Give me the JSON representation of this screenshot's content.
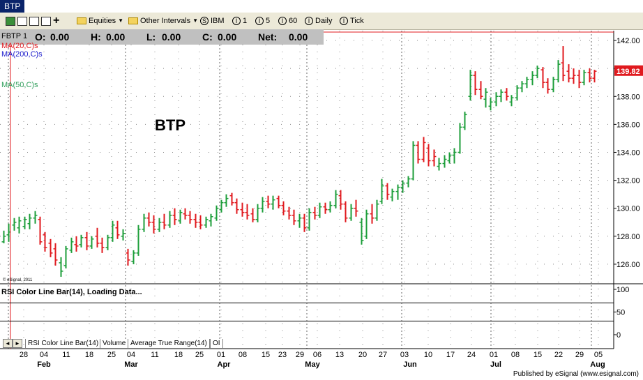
{
  "window": {
    "title": "BTP"
  },
  "toolbar": {
    "equities_label": "Equities",
    "intervals_label": "Other Intervals",
    "symbol": "IBM",
    "intervals": [
      "1",
      "5",
      "60",
      "Daily",
      "Tick"
    ]
  },
  "ohlc": {
    "symbol_label": "FBTP 1",
    "o_label": "O:",
    "o": "0.00",
    "h_label": "H:",
    "h": "0.00",
    "l_label": "L:",
    "l": "0.00",
    "c_label": "C:",
    "c": "0.00",
    "net_label": "Net:",
    "net": "0.00"
  },
  "studies": {
    "ma20": "MA(20,C)s",
    "ma200": "MA(200,C)s",
    "ma50": "MA(50,C)s",
    "copyright": "© eSignal, 2011",
    "rsi_label": "RSI Color Line Bar(14), Loading Data..."
  },
  "tabs": [
    "RSI Color Line Bar(14)",
    "Volume",
    "Average True Range(14)",
    "OI"
  ],
  "footer": "Published by eSignal (www.esignal.com)",
  "colors": {
    "up": "#1c9e3a",
    "down": "#e0191e",
    "ma20": "#e0191e",
    "ma200": "#1a1acc",
    "ma50": "#2e9e5a",
    "price_tag": "#e0191e"
  },
  "chart_data": {
    "type": "ohlc",
    "title": "BTP",
    "y_ticks": [
      126,
      128,
      130,
      132,
      134,
      136,
      138,
      140,
      142
    ],
    "ylim": [
      124.6,
      142.7
    ],
    "last_price": "139.82",
    "x_day_labels": [
      "28",
      "04",
      "11",
      "18",
      "25",
      "04",
      "11",
      "18",
      "25",
      "01",
      "08",
      "15",
      "23",
      "29",
      "06",
      "13",
      "20",
      "27",
      "03",
      "10",
      "17",
      "24",
      "01",
      "08",
      "15",
      "22",
      "29",
      "05"
    ],
    "x_month_labels": [
      "Feb",
      "Mar",
      "Apr",
      "May",
      "Jun",
      "Jul",
      "Aug"
    ],
    "rsi": {
      "ylim": [
        0,
        100
      ],
      "ticks": [
        0,
        50,
        100
      ],
      "levels": [
        30,
        70
      ]
    },
    "bars": [
      {
        "o": 127.6,
        "h": 128.4,
        "l": 127.5,
        "c": 128.0,
        "dir": "up"
      },
      {
        "o": 128.1,
        "h": 128.9,
        "l": 127.6,
        "c": 128.3,
        "dir": "up"
      },
      {
        "o": 128.8,
        "h": 129.3,
        "l": 128.4,
        "c": 129.0,
        "dir": "up"
      },
      {
        "o": 128.6,
        "h": 129.4,
        "l": 128.2,
        "c": 129.1,
        "dir": "up"
      },
      {
        "o": 128.7,
        "h": 129.4,
        "l": 128.5,
        "c": 129.2,
        "dir": "up"
      },
      {
        "o": 128.9,
        "h": 129.6,
        "l": 128.5,
        "c": 129.3,
        "dir": "up"
      },
      {
        "o": 129.3,
        "h": 129.8,
        "l": 128.9,
        "c": 129.5,
        "dir": "up"
      },
      {
        "o": 129.2,
        "h": 129.4,
        "l": 127.4,
        "c": 127.6,
        "dir": "down"
      },
      {
        "o": 128.1,
        "h": 128.3,
        "l": 126.9,
        "c": 127.2,
        "dir": "down"
      },
      {
        "o": 127.5,
        "h": 127.8,
        "l": 126.5,
        "c": 126.8,
        "dir": "down"
      },
      {
        "o": 127.1,
        "h": 127.5,
        "l": 125.9,
        "c": 126.3,
        "dir": "down"
      },
      {
        "o": 126.1,
        "h": 126.5,
        "l": 125.1,
        "c": 125.5,
        "dir": "up"
      },
      {
        "o": 125.9,
        "h": 127.3,
        "l": 125.7,
        "c": 127.1,
        "dir": "up"
      },
      {
        "o": 127.0,
        "h": 127.9,
        "l": 126.8,
        "c": 127.6,
        "dir": "up"
      },
      {
        "o": 127.4,
        "h": 128.0,
        "l": 126.9,
        "c": 127.3,
        "dir": "down"
      },
      {
        "o": 127.4,
        "h": 128.1,
        "l": 127.2,
        "c": 127.9,
        "dir": "up"
      },
      {
        "o": 127.9,
        "h": 128.3,
        "l": 127.0,
        "c": 127.3,
        "dir": "down"
      },
      {
        "o": 127.3,
        "h": 128.0,
        "l": 127.1,
        "c": 127.8,
        "dir": "up"
      },
      {
        "o": 128.0,
        "h": 128.6,
        "l": 127.2,
        "c": 127.5,
        "dir": "down"
      },
      {
        "o": 127.5,
        "h": 127.9,
        "l": 126.8,
        "c": 127.2,
        "dir": "down"
      },
      {
        "o": 127.2,
        "h": 128.1,
        "l": 127.0,
        "c": 127.9,
        "dir": "up"
      },
      {
        "o": 127.9,
        "h": 129.1,
        "l": 127.6,
        "c": 128.8,
        "dir": "up"
      },
      {
        "o": 128.6,
        "h": 129.1,
        "l": 127.8,
        "c": 128.1,
        "dir": "down"
      },
      {
        "o": 128.0,
        "h": 128.5,
        "l": 127.7,
        "c": 128.2,
        "dir": "up"
      },
      {
        "o": 126.8,
        "h": 127.1,
        "l": 125.9,
        "c": 126.3,
        "dir": "down"
      },
      {
        "o": 126.2,
        "h": 127.0,
        "l": 126.0,
        "c": 126.8,
        "dir": "up"
      },
      {
        "o": 126.8,
        "h": 128.8,
        "l": 126.6,
        "c": 128.5,
        "dir": "up"
      },
      {
        "o": 128.5,
        "h": 129.6,
        "l": 128.3,
        "c": 129.3,
        "dir": "up"
      },
      {
        "o": 129.3,
        "h": 129.7,
        "l": 128.7,
        "c": 129.0,
        "dir": "down"
      },
      {
        "o": 129.0,
        "h": 129.5,
        "l": 128.2,
        "c": 128.5,
        "dir": "down"
      },
      {
        "o": 128.5,
        "h": 129.3,
        "l": 128.3,
        "c": 129.0,
        "dir": "up"
      },
      {
        "o": 129.0,
        "h": 129.6,
        "l": 128.5,
        "c": 128.8,
        "dir": "down"
      },
      {
        "o": 128.8,
        "h": 129.8,
        "l": 128.6,
        "c": 129.5,
        "dir": "up"
      },
      {
        "o": 129.5,
        "h": 130.0,
        "l": 128.8,
        "c": 129.2,
        "dir": "down"
      },
      {
        "o": 129.1,
        "h": 129.9,
        "l": 128.9,
        "c": 129.7,
        "dir": "up"
      },
      {
        "o": 129.6,
        "h": 130.0,
        "l": 129.2,
        "c": 129.5,
        "dir": "down"
      },
      {
        "o": 129.5,
        "h": 129.8,
        "l": 128.9,
        "c": 129.2,
        "dir": "down"
      },
      {
        "o": 129.2,
        "h": 129.6,
        "l": 128.6,
        "c": 129.0,
        "dir": "down"
      },
      {
        "o": 129.0,
        "h": 129.5,
        "l": 128.5,
        "c": 128.8,
        "dir": "down"
      },
      {
        "o": 128.8,
        "h": 129.4,
        "l": 128.6,
        "c": 129.2,
        "dir": "up"
      },
      {
        "o": 129.1,
        "h": 129.6,
        "l": 128.7,
        "c": 129.4,
        "dir": "up"
      },
      {
        "o": 129.3,
        "h": 130.2,
        "l": 129.1,
        "c": 130.0,
        "dir": "up"
      },
      {
        "o": 129.9,
        "h": 130.6,
        "l": 129.7,
        "c": 130.4,
        "dir": "up"
      },
      {
        "o": 130.4,
        "h": 131.0,
        "l": 130.1,
        "c": 130.7,
        "dir": "up"
      },
      {
        "o": 130.9,
        "h": 131.1,
        "l": 130.2,
        "c": 130.4,
        "dir": "down"
      },
      {
        "o": 130.4,
        "h": 130.7,
        "l": 129.6,
        "c": 129.9,
        "dir": "down"
      },
      {
        "o": 129.9,
        "h": 130.4,
        "l": 129.4,
        "c": 129.7,
        "dir": "down"
      },
      {
        "o": 129.7,
        "h": 130.3,
        "l": 129.2,
        "c": 129.5,
        "dir": "down"
      },
      {
        "o": 129.6,
        "h": 130.0,
        "l": 129.0,
        "c": 129.2,
        "dir": "down"
      },
      {
        "o": 129.2,
        "h": 130.3,
        "l": 129.0,
        "c": 130.0,
        "dir": "up"
      },
      {
        "o": 130.0,
        "h": 130.8,
        "l": 129.7,
        "c": 130.5,
        "dir": "up"
      },
      {
        "o": 130.5,
        "h": 130.9,
        "l": 130.0,
        "c": 130.3,
        "dir": "down"
      },
      {
        "o": 130.3,
        "h": 130.9,
        "l": 129.9,
        "c": 130.6,
        "dir": "up"
      },
      {
        "o": 130.7,
        "h": 130.9,
        "l": 130.0,
        "c": 130.2,
        "dir": "down"
      },
      {
        "o": 130.2,
        "h": 130.5,
        "l": 129.5,
        "c": 129.8,
        "dir": "down"
      },
      {
        "o": 129.8,
        "h": 130.1,
        "l": 129.2,
        "c": 129.5,
        "dir": "down"
      },
      {
        "o": 129.5,
        "h": 129.9,
        "l": 128.8,
        "c": 129.1,
        "dir": "down"
      },
      {
        "o": 129.1,
        "h": 129.6,
        "l": 128.6,
        "c": 129.3,
        "dir": "up"
      },
      {
        "o": 129.3,
        "h": 129.6,
        "l": 128.3,
        "c": 128.6,
        "dir": "down"
      },
      {
        "o": 128.6,
        "h": 130.0,
        "l": 128.4,
        "c": 129.7,
        "dir": "up"
      },
      {
        "o": 129.7,
        "h": 130.1,
        "l": 129.2,
        "c": 129.5,
        "dir": "down"
      },
      {
        "o": 129.5,
        "h": 130.4,
        "l": 129.3,
        "c": 130.1,
        "dir": "up"
      },
      {
        "o": 130.1,
        "h": 130.4,
        "l": 129.6,
        "c": 129.9,
        "dir": "down"
      },
      {
        "o": 129.9,
        "h": 130.5,
        "l": 129.7,
        "c": 130.2,
        "dir": "up"
      },
      {
        "o": 130.2,
        "h": 131.3,
        "l": 130.0,
        "c": 131.0,
        "dir": "up"
      },
      {
        "o": 130.9,
        "h": 131.3,
        "l": 129.9,
        "c": 130.3,
        "dir": "down"
      },
      {
        "o": 130.3,
        "h": 130.5,
        "l": 129.0,
        "c": 129.3,
        "dir": "down"
      },
      {
        "o": 129.3,
        "h": 130.3,
        "l": 129.1,
        "c": 130.0,
        "dir": "up"
      },
      {
        "o": 130.0,
        "h": 130.6,
        "l": 129.4,
        "c": 129.8,
        "dir": "down"
      },
      {
        "o": 129.0,
        "h": 129.3,
        "l": 127.4,
        "c": 127.7,
        "dir": "up"
      },
      {
        "o": 128.0,
        "h": 129.9,
        "l": 127.8,
        "c": 129.6,
        "dir": "up"
      },
      {
        "o": 129.6,
        "h": 130.3,
        "l": 128.9,
        "c": 129.3,
        "dir": "down"
      },
      {
        "o": 129.3,
        "h": 130.6,
        "l": 129.1,
        "c": 130.3,
        "dir": "up"
      },
      {
        "o": 130.5,
        "h": 132.1,
        "l": 130.3,
        "c": 131.6,
        "dir": "up"
      },
      {
        "o": 131.6,
        "h": 131.8,
        "l": 130.6,
        "c": 131.0,
        "dir": "down"
      },
      {
        "o": 130.8,
        "h": 131.4,
        "l": 130.5,
        "c": 131.2,
        "dir": "up"
      },
      {
        "o": 131.2,
        "h": 131.7,
        "l": 130.6,
        "c": 131.5,
        "dir": "up"
      },
      {
        "o": 131.5,
        "h": 132.0,
        "l": 131.1,
        "c": 131.8,
        "dir": "up"
      },
      {
        "o": 131.8,
        "h": 132.3,
        "l": 131.5,
        "c": 132.1,
        "dir": "up"
      },
      {
        "o": 132.1,
        "h": 134.8,
        "l": 132.0,
        "c": 134.5,
        "dir": "up"
      },
      {
        "o": 134.5,
        "h": 134.8,
        "l": 133.2,
        "c": 133.5,
        "dir": "down"
      },
      {
        "o": 133.5,
        "h": 135.1,
        "l": 133.3,
        "c": 134.7,
        "dir": "down"
      },
      {
        "o": 134.3,
        "h": 134.6,
        "l": 133.0,
        "c": 133.4,
        "dir": "down"
      },
      {
        "o": 133.4,
        "h": 134.2,
        "l": 133.0,
        "c": 133.7,
        "dir": "down"
      },
      {
        "o": 133.0,
        "h": 133.6,
        "l": 132.7,
        "c": 133.2,
        "dir": "up"
      },
      {
        "o": 133.2,
        "h": 133.8,
        "l": 132.9,
        "c": 133.5,
        "dir": "up"
      },
      {
        "o": 133.4,
        "h": 134.0,
        "l": 133.2,
        "c": 133.8,
        "dir": "up"
      },
      {
        "o": 133.8,
        "h": 134.3,
        "l": 133.2,
        "c": 134.0,
        "dir": "up"
      },
      {
        "o": 134.0,
        "h": 136.1,
        "l": 133.9,
        "c": 135.8,
        "dir": "up"
      },
      {
        "o": 135.8,
        "h": 136.9,
        "l": 135.6,
        "c": 136.7,
        "dir": "up"
      },
      {
        "o": 138.0,
        "h": 139.9,
        "l": 137.7,
        "c": 139.5,
        "dir": "up"
      },
      {
        "o": 139.5,
        "h": 139.8,
        "l": 138.1,
        "c": 138.5,
        "dir": "down"
      },
      {
        "o": 138.5,
        "h": 139.1,
        "l": 137.8,
        "c": 138.0,
        "dir": "down"
      },
      {
        "o": 137.8,
        "h": 138.6,
        "l": 137.2,
        "c": 138.3,
        "dir": "up"
      },
      {
        "o": 137.3,
        "h": 137.9,
        "l": 137.0,
        "c": 137.6,
        "dir": "up"
      },
      {
        "o": 137.6,
        "h": 138.3,
        "l": 137.3,
        "c": 138.0,
        "dir": "up"
      },
      {
        "o": 138.0,
        "h": 138.5,
        "l": 137.6,
        "c": 138.3,
        "dir": "up"
      },
      {
        "o": 138.3,
        "h": 138.6,
        "l": 137.7,
        "c": 138.0,
        "dir": "down"
      },
      {
        "o": 137.6,
        "h": 138.1,
        "l": 137.3,
        "c": 137.9,
        "dir": "up"
      },
      {
        "o": 137.9,
        "h": 138.8,
        "l": 137.7,
        "c": 138.6,
        "dir": "up"
      },
      {
        "o": 138.6,
        "h": 139.1,
        "l": 138.3,
        "c": 138.9,
        "dir": "up"
      },
      {
        "o": 138.9,
        "h": 139.4,
        "l": 138.6,
        "c": 139.2,
        "dir": "up"
      },
      {
        "o": 139.2,
        "h": 139.8,
        "l": 138.8,
        "c": 139.5,
        "dir": "up"
      },
      {
        "o": 139.5,
        "h": 140.2,
        "l": 139.3,
        "c": 140.0,
        "dir": "up"
      },
      {
        "o": 139.9,
        "h": 140.1,
        "l": 138.6,
        "c": 139.0,
        "dir": "down"
      },
      {
        "o": 139.0,
        "h": 139.3,
        "l": 138.2,
        "c": 138.5,
        "dir": "down"
      },
      {
        "o": 138.5,
        "h": 139.4,
        "l": 138.3,
        "c": 139.2,
        "dir": "up"
      },
      {
        "o": 139.2,
        "h": 140.6,
        "l": 139.0,
        "c": 140.3,
        "dir": "up"
      },
      {
        "o": 140.4,
        "h": 141.6,
        "l": 139.1,
        "c": 139.5,
        "dir": "down"
      },
      {
        "o": 139.8,
        "h": 140.3,
        "l": 139.0,
        "c": 139.3,
        "dir": "down"
      },
      {
        "o": 139.3,
        "h": 140.0,
        "l": 138.9,
        "c": 139.5,
        "dir": "down"
      },
      {
        "o": 139.5,
        "h": 139.9,
        "l": 138.6,
        "c": 139.0,
        "dir": "down"
      },
      {
        "o": 139.0,
        "h": 139.9,
        "l": 138.8,
        "c": 139.7,
        "dir": "up"
      },
      {
        "o": 139.7,
        "h": 140.0,
        "l": 139.0,
        "c": 139.3,
        "dir": "down"
      },
      {
        "o": 139.3,
        "h": 139.9,
        "l": 139.0,
        "c": 139.8,
        "dir": "down"
      }
    ]
  }
}
